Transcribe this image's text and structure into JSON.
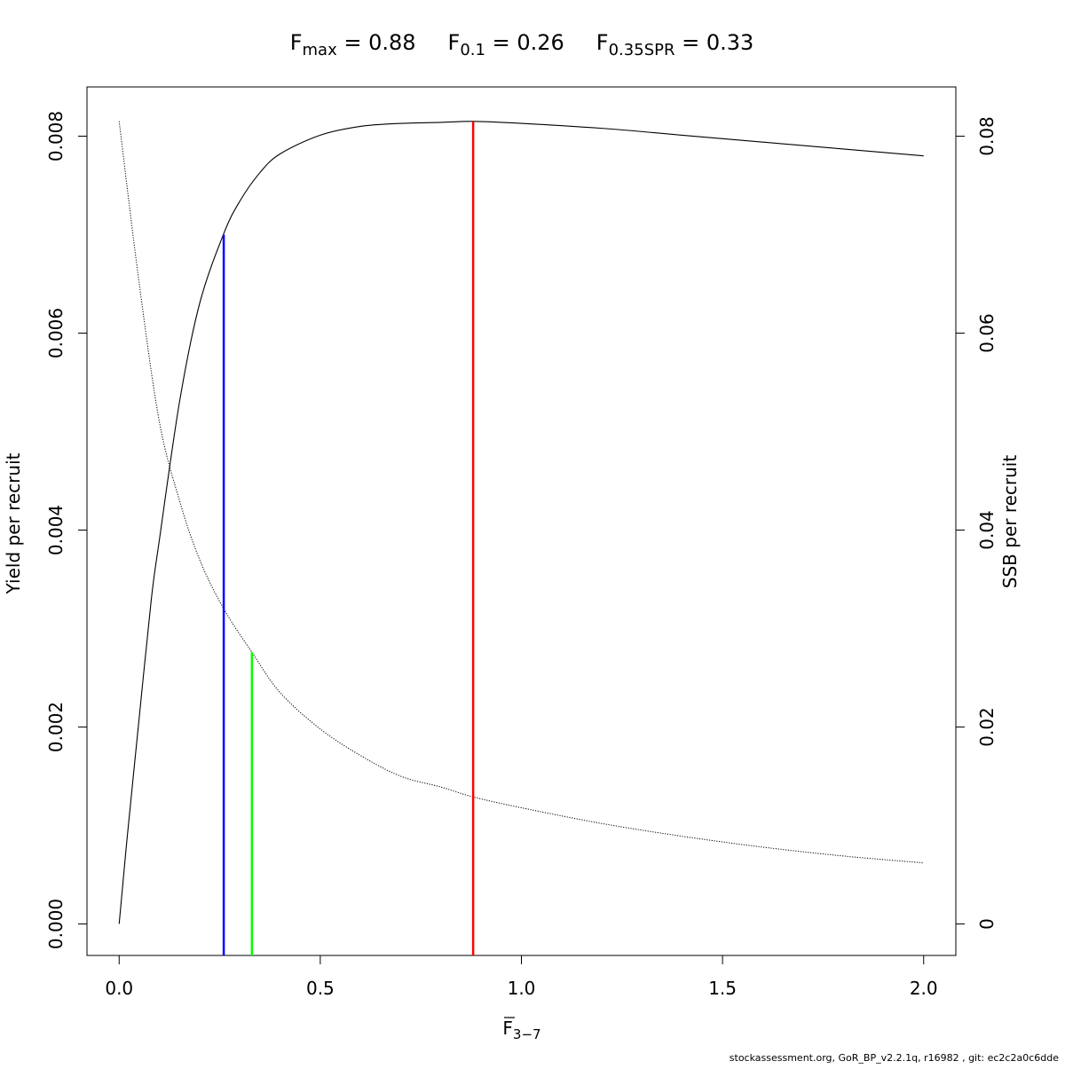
{
  "chart_data": {
    "type": "line",
    "title_parts": [
      {
        "name": "F",
        "sub": "max",
        "value": "0.88"
      },
      {
        "name": "F",
        "sub": "0.1",
        "value": "0.26"
      },
      {
        "name": "F",
        "sub": "0.35SPR",
        "value": "0.33"
      }
    ],
    "xlabel": {
      "main": "F",
      "sub": "3−7"
    },
    "ylabel_left": "Yield per recruit",
    "ylabel_right": "SSB per recruit",
    "xlim": [
      -0.08,
      2.08
    ],
    "ylim_left": [
      -0.00032,
      0.0085
    ],
    "ylim_right": [
      -0.0032,
      0.085
    ],
    "x_ticks": [
      0,
      0.5,
      1,
      1.5,
      2
    ],
    "x_tick_labels": [
      "0.0",
      "0.5",
      "1.0",
      "1.5",
      "2.0"
    ],
    "y_left_ticks": [
      0,
      0.002,
      0.004,
      0.006,
      0.008
    ],
    "y_left_tick_labels": [
      "0.000",
      "0.002",
      "0.004",
      "0.006",
      "0.008"
    ],
    "y_right_ticks": [
      0,
      0.02,
      0.04,
      0.06,
      0.08
    ],
    "y_right_tick_labels": [
      "0",
      "0.02",
      "0.04",
      "0.06",
      "0.08"
    ],
    "series": [
      {
        "axis": "left",
        "style": "solid",
        "color": "#000000",
        "x": [
          0,
          0.02,
          0.05,
          0.08,
          0.1,
          0.15,
          0.2,
          0.26,
          0.3,
          0.35,
          0.4,
          0.5,
          0.6,
          0.7,
          0.8,
          0.88,
          1.0,
          1.2,
          1.4,
          1.6,
          1.8,
          2.0
        ],
        "y": [
          0,
          0.00088,
          0.0021,
          0.0033,
          0.0039,
          0.0053,
          0.0063,
          0.00701,
          0.00734,
          0.00763,
          0.00782,
          0.00801,
          0.0081,
          0.00813,
          0.00814,
          0.00815,
          0.00813,
          0.00808,
          0.00801,
          0.00794,
          0.00787,
          0.0078
        ]
      },
      {
        "axis": "right",
        "style": "dotted",
        "color": "#000000",
        "x": [
          0,
          0.05,
          0.1,
          0.15,
          0.2,
          0.26,
          0.33,
          0.4,
          0.5,
          0.6,
          0.7,
          0.8,
          0.88,
          1.0,
          1.2,
          1.4,
          1.6,
          1.8,
          2.0
        ],
        "y": [
          0.0815,
          0.065,
          0.051,
          0.043,
          0.037,
          0.032,
          0.0276,
          0.0235,
          0.0198,
          0.0171,
          0.015,
          0.0139,
          0.0129,
          0.0118,
          0.0102,
          0.0089,
          0.0078,
          0.0069,
          0.0062
        ]
      }
    ],
    "reference_lines": [
      {
        "label": "F0.1",
        "x": 0.26,
        "y_top": 0.007,
        "color": "#0000ff"
      },
      {
        "label": "F0.35SPR",
        "x": 0.33,
        "y_top": 0.00276,
        "color": "#00ff00"
      },
      {
        "label": "Fmax",
        "x": 0.88,
        "y_top": 0.00815,
        "color": "#ff0000"
      }
    ]
  },
  "footer_text": "stockassessment.org, GoR_BP_v2.2.1q, r16982 , git: ec2c2a0c6dde"
}
